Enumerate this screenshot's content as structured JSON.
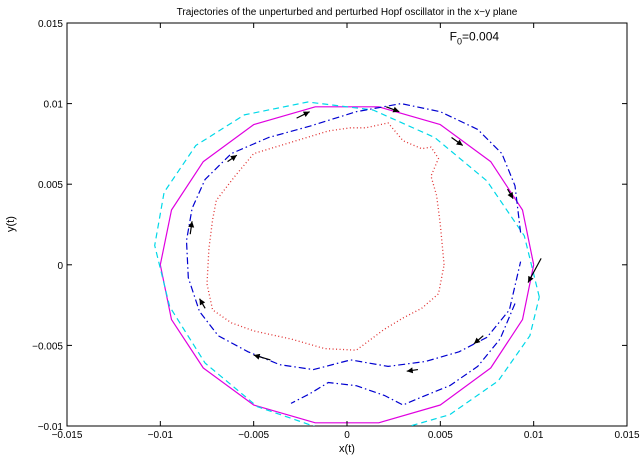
{
  "chart_data": {
    "type": "line",
    "title": "Trajectories of the unperturbed and perturbed Hopf oscillator in the x−y plane",
    "xlabel": "x(t)",
    "ylabel": "y(t)",
    "xlim": [
      -0.015,
      0.015
    ],
    "ylim": [
      -0.01,
      0.015
    ],
    "xticks": [
      "−0.015",
      "−0.01",
      "−0.005",
      "0",
      "0.005",
      "0.01",
      "0.015"
    ],
    "yticks": [
      "−0.01",
      "−0.005",
      "0",
      "0.005",
      "0.01",
      "0.015"
    ],
    "xtick_values": [
      -0.015,
      -0.01,
      -0.005,
      0,
      0.005,
      0.01,
      0.015
    ],
    "ytick_values": [
      -0.01,
      -0.005,
      0,
      0.005,
      0.01,
      0.015
    ],
    "grid": false,
    "annotation": {
      "base": "F",
      "sub": "0",
      "rest": "=0.004",
      "x": 0.0055,
      "y": 0.0139
    },
    "series": [
      {
        "style": "solid",
        "color": "#e000e0",
        "x": [
          0.01,
          0.0094,
          0.0077,
          0.005,
          0.0017,
          -0.0017,
          -0.005,
          -0.0077,
          -0.0094,
          -0.01,
          -0.0094,
          -0.0077,
          -0.005,
          -0.0017,
          0.0017,
          0.005,
          0.0077,
          0.0094,
          0.01
        ],
        "y": [
          0.0,
          0.0034,
          0.0064,
          0.0087,
          0.0098,
          0.0098,
          0.0087,
          0.0064,
          0.0034,
          0.0,
          -0.0034,
          -0.0064,
          -0.0087,
          -0.0098,
          -0.0098,
          -0.0087,
          -0.0064,
          -0.0034,
          0.0
        ]
      },
      {
        "style": "dashed",
        "color": "#00d8e8",
        "x": [
          0.0103,
          0.0095,
          0.0075,
          0.0047,
          0.0014,
          -0.0021,
          -0.0055,
          -0.0081,
          -0.0098,
          -0.0103,
          -0.0095,
          -0.0076,
          -0.0048,
          -0.0013,
          0.0022,
          0.0055,
          0.0081,
          0.0098,
          0.0103
        ],
        "y": [
          -0.002,
          0.0018,
          0.0052,
          0.0079,
          0.0096,
          0.0101,
          0.0093,
          0.0074,
          0.0045,
          0.0012,
          -0.0026,
          -0.0061,
          -0.0088,
          -0.0102,
          -0.0104,
          -0.0093,
          -0.0072,
          -0.0044,
          -0.002
        ]
      },
      {
        "style": "dashdot",
        "color": "#0000d0",
        "x": [
          0.0093,
          0.009,
          0.0083,
          0.007,
          0.005,
          0.0029,
          0.0005,
          -0.002,
          -0.0042,
          -0.0062,
          -0.0076,
          -0.0083,
          -0.0086,
          -0.0085,
          -0.0079,
          -0.0069,
          -0.0053,
          -0.0036,
          -0.0018,
          0.0002,
          0.0022,
          0.0042,
          0.006,
          0.0075,
          0.0087,
          0.0093
        ],
        "y": [
          0.002,
          0.0049,
          0.0069,
          0.0084,
          0.0095,
          0.01,
          0.0095,
          0.0086,
          0.0079,
          0.0069,
          0.0053,
          0.0035,
          0.0015,
          -0.0008,
          -0.0029,
          -0.0044,
          -0.0054,
          -0.0062,
          -0.0065,
          -0.0059,
          -0.0063,
          -0.006,
          -0.0054,
          -0.0045,
          -0.0028,
          0.0002
        ]
      },
      {
        "style": "dashdot",
        "color": "#0000d0",
        "x": [
          0.009,
          0.0082,
          0.007,
          0.0055,
          0.004,
          0.003,
          0.002,
          0.0005,
          -0.001,
          -0.002,
          -0.003
        ],
        "y": [
          -0.0024,
          -0.0046,
          -0.0063,
          -0.0075,
          -0.0082,
          -0.0087,
          -0.0081,
          -0.0075,
          -0.0073,
          -0.008,
          -0.0086
        ]
      },
      {
        "style": "dotted",
        "color": "#e03030",
        "x": [
          0.0052,
          0.005,
          0.0048,
          0.0045,
          0.0049,
          0.0045,
          0.004,
          0.003,
          0.0022,
          0.001,
          0.0002,
          -0.001,
          -0.003,
          -0.005,
          -0.006,
          -0.007,
          -0.0072,
          -0.0074,
          -0.0075,
          -0.0072,
          -0.0062,
          -0.005,
          -0.003,
          -0.0012,
          0.0005,
          0.002,
          0.003,
          0.004,
          0.0049,
          0.0052
        ],
        "y": [
          0.0,
          0.0025,
          0.0043,
          0.0055,
          0.0066,
          0.0073,
          0.0072,
          0.0077,
          0.0088,
          0.0085,
          0.0085,
          0.0083,
          0.0076,
          0.0069,
          0.0055,
          0.004,
          0.0028,
          0.001,
          -0.0012,
          -0.0028,
          -0.0036,
          -0.0041,
          -0.0046,
          -0.0052,
          -0.0053,
          -0.004,
          -0.0033,
          -0.0027,
          -0.0018,
          0.0
        ]
      }
    ],
    "arrows": [
      {
        "x1": -0.0027,
        "y1": 0.0091,
        "x2": -0.002,
        "y2": 0.0095
      },
      {
        "x1": 0.0021,
        "y1": 0.0098,
        "x2": 0.0028,
        "y2": 0.0095
      },
      {
        "x1": 0.0056,
        "y1": 0.0079,
        "x2": 0.0062,
        "y2": 0.0074
      },
      {
        "x1": 0.0086,
        "y1": 0.0047,
        "x2": 0.0089,
        "y2": 0.0041
      },
      {
        "x1": 0.0104,
        "y1": 0.0004,
        "x2": 0.0097,
        "y2": -0.0011
      },
      {
        "x1": 0.0073,
        "y1": -0.0044,
        "x2": 0.0068,
        "y2": -0.0049
      },
      {
        "x1": 0.0038,
        "y1": -0.0065,
        "x2": 0.0032,
        "y2": -0.0066
      },
      {
        "x1": -0.0041,
        "y1": -0.0059,
        "x2": -0.005,
        "y2": -0.0056
      },
      {
        "x1": -0.0076,
        "y1": -0.0027,
        "x2": -0.0079,
        "y2": -0.0021
      },
      {
        "x1": -0.0084,
        "y1": 0.0019,
        "x2": -0.0083,
        "y2": 0.0027
      },
      {
        "x1": -0.0064,
        "y1": 0.0064,
        "x2": -0.0059,
        "y2": 0.0068
      }
    ]
  }
}
